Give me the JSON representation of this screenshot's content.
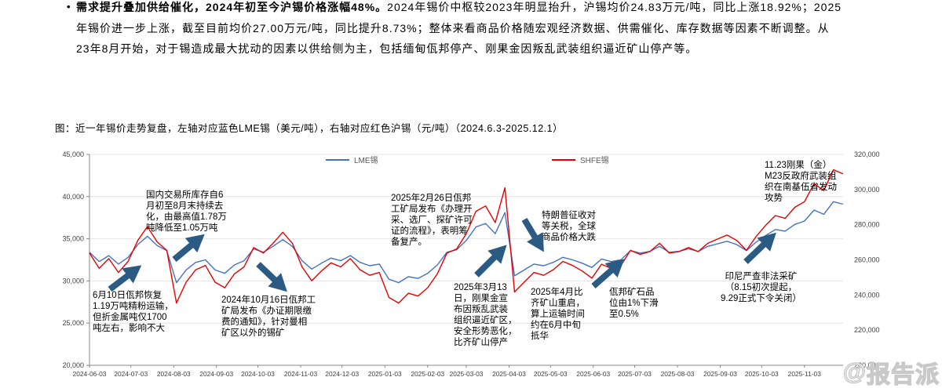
{
  "page": {
    "bullet": {
      "marker": "•",
      "line1_bold": "需求提升叠加供给催化，2024年初至今沪锡价格涨幅48%。",
      "line1_rest": "2024年锡价中枢较2023年明显抬升，沪锡均价24.83万元/吨，同比上涨18.92%；2025",
      "line2": "年锡价进一步上涨，截至目前均价27.00万元/吨，同比提升8.73%；整体来看商品价格随宏观经济数据、供需催化、库存数据等因素不断调整。从",
      "line3": "23年8月开始，对于锡造成最大扰动的因素以供给侧为主，包括缅甸佤邦停产、刚果金因叛乱武装组织逼近矿山停产等。"
    },
    "figure_caption": "图：近一年锡价走势复盘，左轴对应蓝色LME锡（美元/吨），右轴对应红色沪锡（元/吨）（2024.6.3-2025.12.1）",
    "watermark_icon": "@",
    "watermark_text": "报告派"
  },
  "chart_data": {
    "type": "line",
    "title": "近一年锡价走势复盘（2024.6.3-2025.12.1）",
    "legend_position": "top",
    "grid": "horizontal",
    "x_start": "2024-06-03",
    "x_end": "2025-12-01",
    "x_ticks": [
      "2024-06-03",
      "2024-07-03",
      "2024-08-03",
      "2024-09-03",
      "2024-10-03",
      "2024-11-03",
      "2024-12-03",
      "2025-01-03",
      "2025-02-03",
      "2025-03-03",
      "2025-04-03",
      "2025-05-03",
      "2025-06-03",
      "2025-07-03",
      "2025-08-03",
      "2025-09-03",
      "2025-10-03",
      "2025-11-03"
    ],
    "y_left": {
      "label": "LME锡（美元/吨）",
      "min": 20000,
      "max": 45000,
      "ticks": [
        45000,
        40000,
        35000,
        30000,
        25000,
        20000
      ],
      "tick_labels": [
        "45,000",
        "40,000",
        "35,000",
        "30,000",
        "25,000",
        "20,000"
      ]
    },
    "y_right": {
      "label": "沪锡（元/吨）",
      "min": 200000,
      "max": 320000,
      "ticks": [
        320000,
        300000,
        280000,
        260000,
        240000,
        220000,
        200000
      ],
      "tick_labels": [
        "320,000",
        "300,000",
        "280,000",
        "260,000",
        "240,000",
        "220,000",
        "200,000"
      ]
    },
    "series": [
      {
        "name": "LME锡",
        "axis": "left",
        "color": "#4472C4",
        "unit": "美元/吨",
        "values": [
          33400,
          32300,
          33000,
          32000,
          32800,
          34300,
          35300,
          34200,
          33600,
          29800,
          31300,
          32200,
          32500,
          31300,
          30900,
          31900,
          32400,
          33800,
          33400,
          34100,
          34900,
          34100,
          32400,
          31400,
          32100,
          32700,
          32400,
          33000,
          32200,
          31800,
          32000,
          30200,
          29800,
          30500,
          30300,
          30900,
          31900,
          33400,
          33700,
          34800,
          36400,
          36800,
          35600,
          38100,
          30600,
          31300,
          32000,
          31800,
          32200,
          32800,
          32500,
          32100,
          31600,
          32600,
          32300,
          32500,
          33600,
          33300,
          33500,
          34100,
          33400,
          33500,
          33800,
          33500,
          34100,
          34400,
          34700,
          34300,
          33600,
          34600,
          35400,
          36100,
          35900,
          36700,
          37100,
          38400,
          37900,
          39400,
          39100
        ]
      },
      {
        "name": "SHFE锡",
        "axis": "right",
        "color": "#E60000",
        "unit": "元/吨",
        "values": [
          263900,
          255200,
          260700,
          252800,
          259100,
          271000,
          278900,
          270200,
          265400,
          235400,
          247300,
          254400,
          256800,
          247300,
          244100,
          252000,
          256000,
          267000,
          263900,
          269400,
          275700,
          269400,
          256000,
          248100,
          253600,
          258300,
          256000,
          260700,
          254400,
          251200,
          252800,
          238600,
          235400,
          241000,
          239400,
          244100,
          252000,
          263900,
          266200,
          274900,
          287600,
          290700,
          281200,
          301000,
          241700,
          247300,
          252800,
          251200,
          254400,
          259100,
          256800,
          253600,
          249600,
          257500,
          255200,
          256800,
          265400,
          263100,
          264700,
          269400,
          263900,
          264700,
          267000,
          264700,
          269400,
          271800,
          274100,
          271000,
          265400,
          273300,
          279700,
          285200,
          283600,
          289900,
          293100,
          303400,
          299400,
          311300,
          308900
        ]
      }
    ],
    "annotations": [
      "国内交易所库存自6\n月初至8月末持续去\n化，由最高值1.78万\n吨降低至1.05万吨",
      "6月10日佤邦恢复\n1.19万吨精粉运输，\n但折金属吨仅1700\n吨左右，影响不大",
      "2024年10月16日佤邦工\n矿局发布《办证期限缴\n费的通知》，针对曼相\n矿区以外的锡矿",
      "2025年2月26日佤邦\n工矿局发布《办理开\n采、选厂、探矿许可\n证的流程》，表明筹\n备复产。",
      "2025年3月13\n日，刚果金宣\n布因叛乱武装\n组织逼近矿区，\n安全形势恶化，\n比齐矿山停产",
      "特朗普征收对\n等关税，全球\n商品价格大跌",
      "2025年4月比\n齐矿山重启，\n算上运输时间\n约在6月中旬\n抵华",
      "佤邦矿石品\n位由1%下滑\n至0.5%",
      "印尼严查非法采矿\n（8.15初次提起，\n9.29正式下令关闭）",
      "11.23刚果（金）\nM23反政府武装组\n织在南基伍省发动\n攻势"
    ]
  }
}
